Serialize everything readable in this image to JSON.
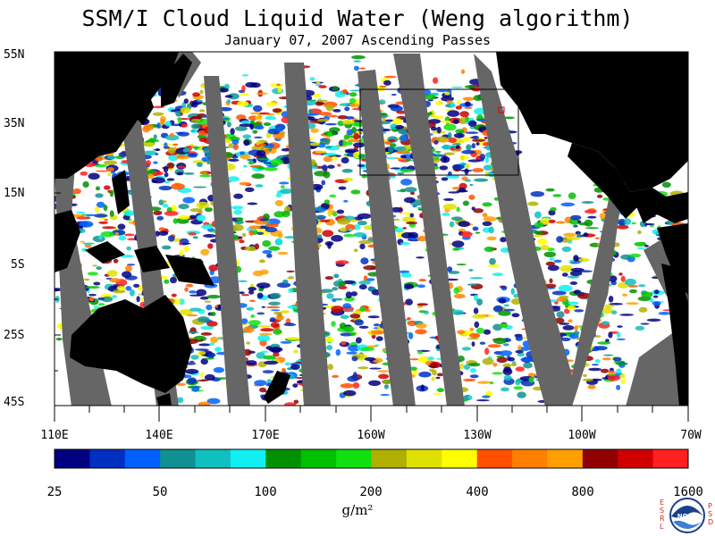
{
  "title": "SSM/I Cloud Liquid Water (Weng algorithm)",
  "subtitle": "January 07, 2007  Ascending Passes",
  "lat_labels": [
    "55N",
    "35N",
    "15N",
    "5S",
    "25S",
    "45S"
  ],
  "lon_labels": [
    "110E",
    "140E",
    "170E",
    "160W",
    "130W",
    "100W",
    "70W"
  ],
  "colorbar": {
    "ticks": [
      "25",
      "50",
      "100",
      "200",
      "400",
      "800",
      "1600"
    ],
    "units": "g/m²",
    "colors": [
      "#000080",
      "#0030c0",
      "#0060ff",
      "#109090",
      "#10c0c0",
      "#10f0f0",
      "#009000",
      "#00c000",
      "#10e010",
      "#b0b000",
      "#e0e000",
      "#ffff00",
      "#ff5000",
      "#ff8000",
      "#ffa000",
      "#900000",
      "#d00000",
      "#ff2020"
    ]
  },
  "legend_colors": {
    "land": "#000000",
    "no_data": "#666666",
    "clear": "#ffffff",
    "box": "#000000"
  },
  "logo": {
    "left_letters": "ESRL",
    "right_letters": "PSD",
    "center": "NOAA"
  }
}
